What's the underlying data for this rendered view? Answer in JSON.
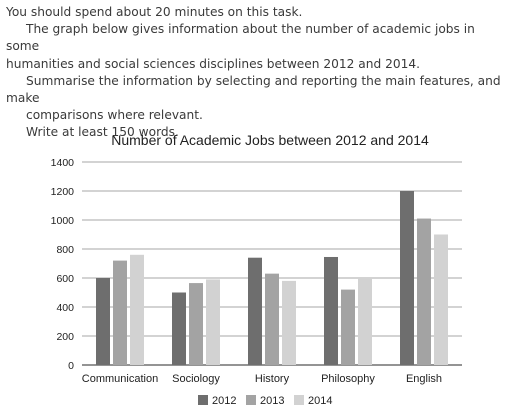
{
  "task": {
    "line1": "You should spend about 20 minutes on this task.",
    "line2": "The graph below gives information about the number of academic jobs in some",
    "line3": "humanities and social sciences disciplines between 2012 and 2014.",
    "line4": "Summarise the information by selecting and reporting the main features, and make",
    "line5": "comparisons where relevant.",
    "line6": "Write at least 150 words."
  },
  "chart_data": {
    "type": "bar",
    "title": "Number of Academic Jobs between 2012 and 2014",
    "xlabel": "",
    "ylabel": "",
    "categories": [
      "Communication",
      "Sociology",
      "History",
      "Philosophy",
      "English"
    ],
    "series": [
      {
        "name": "2012",
        "values": [
          600,
          500,
          740,
          745,
          1200
        ],
        "color": "#6e6e6e"
      },
      {
        "name": "2013",
        "values": [
          720,
          565,
          630,
          520,
          1010
        ],
        "color": "#a3a3a3"
      },
      {
        "name": "2014",
        "values": [
          760,
          590,
          580,
          600,
          900
        ],
        "color": "#d2d2d2"
      }
    ],
    "ylim": [
      0,
      1400
    ],
    "yticks": [
      0,
      200,
      400,
      600,
      800,
      1000,
      1200,
      1400
    ],
    "grid": true,
    "legend_position": "bottom"
  }
}
